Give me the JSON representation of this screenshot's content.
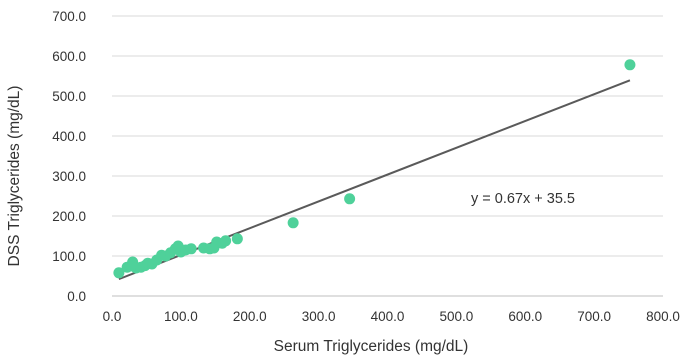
{
  "chart_data": {
    "type": "scatter",
    "title": "",
    "xlabel": "Serum Triglycerides (mg/dL)",
    "ylabel": "DSS Triglycerides (mg/dL)",
    "xlim": [
      0,
      800
    ],
    "ylim": [
      0,
      700
    ],
    "x_ticks": [
      "0.0",
      "100.0",
      "200.0",
      "300.0",
      "400.0",
      "500.0",
      "600.0",
      "700.0",
      "800.0"
    ],
    "y_ticks": [
      "0.0",
      "100.0",
      "200.0",
      "300.0",
      "400.0",
      "500.0",
      "600.0",
      "700.0"
    ],
    "grid": {
      "horizontal": true,
      "vertical": false
    },
    "legend": "none",
    "point_color": "#4fd19a",
    "trendline_color": "#5a5a5a",
    "trendline": {
      "slope": 0.67,
      "intercept": 35.5,
      "x_range": [
        10,
        752
      ]
    },
    "equation_label": "y = 0.67x + 35.5",
    "points": [
      {
        "x": 10,
        "y": 58
      },
      {
        "x": 22,
        "y": 72
      },
      {
        "x": 27,
        "y": 75
      },
      {
        "x": 30,
        "y": 85
      },
      {
        "x": 35,
        "y": 70
      },
      {
        "x": 42,
        "y": 72
      },
      {
        "x": 48,
        "y": 76
      },
      {
        "x": 52,
        "y": 82
      },
      {
        "x": 58,
        "y": 80
      },
      {
        "x": 65,
        "y": 90
      },
      {
        "x": 72,
        "y": 102
      },
      {
        "x": 78,
        "y": 100
      },
      {
        "x": 85,
        "y": 108
      },
      {
        "x": 92,
        "y": 118
      },
      {
        "x": 96,
        "y": 125
      },
      {
        "x": 100,
        "y": 110
      },
      {
        "x": 107,
        "y": 115
      },
      {
        "x": 115,
        "y": 118
      },
      {
        "x": 133,
        "y": 120
      },
      {
        "x": 142,
        "y": 118
      },
      {
        "x": 148,
        "y": 120
      },
      {
        "x": 152,
        "y": 135
      },
      {
        "x": 160,
        "y": 132
      },
      {
        "x": 165,
        "y": 138
      },
      {
        "x": 182,
        "y": 143
      },
      {
        "x": 263,
        "y": 183
      },
      {
        "x": 345,
        "y": 243
      },
      {
        "x": 752,
        "y": 578
      }
    ]
  }
}
